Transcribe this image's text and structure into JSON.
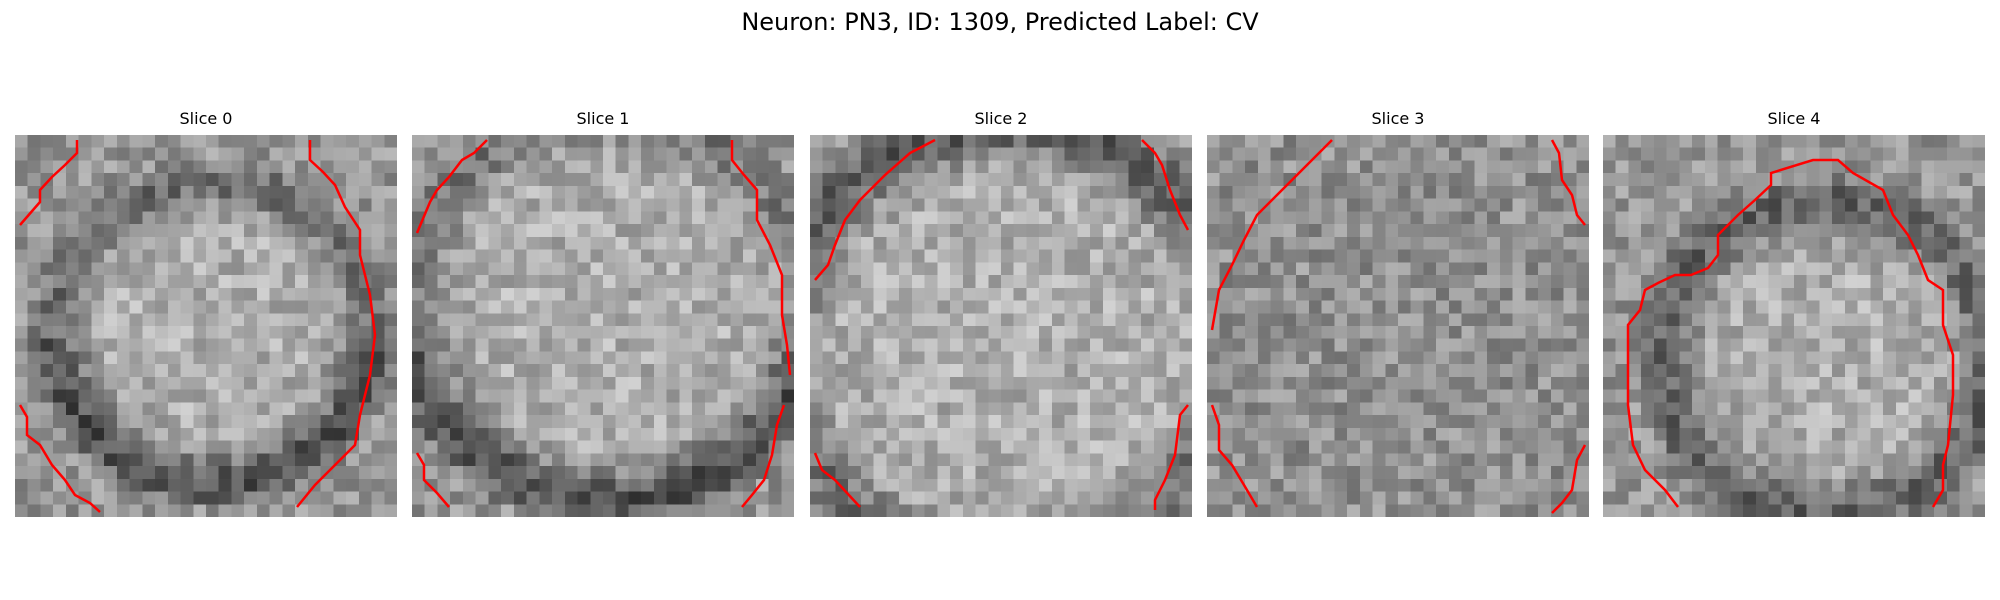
{
  "figure": {
    "title": "Neuron: PN3, ID: 1309, Predicted Label: CV",
    "contour_color": "#ff0000",
    "colormap": "gray",
    "slices": [
      {
        "label": "Slice 0"
      },
      {
        "label": "Slice 1"
      },
      {
        "label": "Slice 2"
      },
      {
        "label": "Slice 3"
      },
      {
        "label": "Slice 4"
      }
    ]
  }
}
